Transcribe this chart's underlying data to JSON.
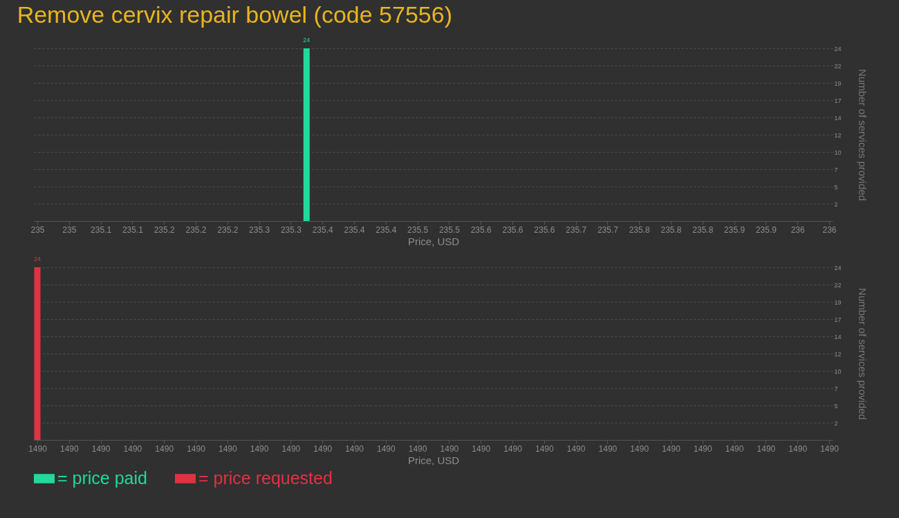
{
  "chart_data": [
    {
      "type": "bar",
      "title": "Remove cervix repair bowel (code 57556)",
      "xlabel": "Price, USD",
      "ylabel": "Number of services provided",
      "x": [
        235.34
      ],
      "series": [
        {
          "name": "= price paid",
          "color": "#22d89b",
          "values": [
            24
          ]
        }
      ],
      "xlim": [
        235,
        236
      ],
      "xticks": [
        {
          "value": 235,
          "label": "235"
        },
        {
          "value": 235.04,
          "label": "235"
        },
        {
          "value": 235.08,
          "label": "235.1"
        },
        {
          "value": 235.12,
          "label": "235.1"
        },
        {
          "value": 235.16,
          "label": "235.2"
        },
        {
          "value": 235.2,
          "label": "235.2"
        },
        {
          "value": 235.24,
          "label": "235.2"
        },
        {
          "value": 235.28,
          "label": "235.3"
        },
        {
          "value": 235.32,
          "label": "235.3"
        },
        {
          "value": 235.36,
          "label": "235.4"
        },
        {
          "value": 235.4,
          "label": "235.4"
        },
        {
          "value": 235.44,
          "label": "235.4"
        },
        {
          "value": 235.48,
          "label": "235.5"
        },
        {
          "value": 235.52,
          "label": "235.5"
        },
        {
          "value": 235.56,
          "label": "235.6"
        },
        {
          "value": 235.6,
          "label": "235.6"
        },
        {
          "value": 235.64,
          "label": "235.6"
        },
        {
          "value": 235.68,
          "label": "235.7"
        },
        {
          "value": 235.72,
          "label": "235.7"
        },
        {
          "value": 235.76,
          "label": "235.8"
        },
        {
          "value": 235.8,
          "label": "235.8"
        },
        {
          "value": 235.84,
          "label": "235.8"
        },
        {
          "value": 235.88,
          "label": "235.9"
        },
        {
          "value": 235.92,
          "label": "235.9"
        },
        {
          "value": 235.96,
          "label": "236"
        },
        {
          "value": 236,
          "label": "236"
        }
      ],
      "ylim": [
        0,
        24
      ],
      "yticks": [
        {
          "value": 2.4,
          "label": "2"
        },
        {
          "value": 4.8,
          "label": "5"
        },
        {
          "value": 7.2,
          "label": "7"
        },
        {
          "value": 9.6,
          "label": "10"
        },
        {
          "value": 12,
          "label": "12"
        },
        {
          "value": 14.4,
          "label": "14"
        },
        {
          "value": 16.8,
          "label": "17"
        },
        {
          "value": 19.2,
          "label": "19"
        },
        {
          "value": 21.6,
          "label": "22"
        },
        24
      ],
      "grid": "y",
      "data_labels": true,
      "legend": "bottom"
    },
    {
      "type": "bar",
      "xlabel": "Price, USD",
      "ylabel": "Number of services provided",
      "x": [
        1490
      ],
      "series": [
        {
          "name": "= price requested",
          "color": "#e03242",
          "values": [
            24
          ]
        }
      ],
      "xlim": [
        1490,
        1490.4
      ],
      "xticks": [
        {
          "value": 1490,
          "label": "1490"
        },
        {
          "value": 1490.016,
          "label": "1490"
        },
        {
          "value": 1490.032,
          "label": "1490"
        },
        {
          "value": 1490.048,
          "label": "1490"
        },
        {
          "value": 1490.064,
          "label": "1490"
        },
        {
          "value": 1490.08,
          "label": "1490"
        },
        {
          "value": 1490.096,
          "label": "1490"
        },
        {
          "value": 1490.112,
          "label": "1490"
        },
        {
          "value": 1490.128,
          "label": "1490"
        },
        {
          "value": 1490.144,
          "label": "1490"
        },
        {
          "value": 1490.16,
          "label": "1490"
        },
        {
          "value": 1490.176,
          "label": "1490"
        },
        {
          "value": 1490.192,
          "label": "1490"
        },
        {
          "value": 1490.208,
          "label": "1490"
        },
        {
          "value": 1490.224,
          "label": "1490"
        },
        {
          "value": 1490.24,
          "label": "1490"
        },
        {
          "value": 1490.256,
          "label": "1490"
        },
        {
          "value": 1490.272,
          "label": "1490"
        },
        {
          "value": 1490.288,
          "label": "1490"
        },
        {
          "value": 1490.304,
          "label": "1490"
        },
        {
          "value": 1490.32,
          "label": "1490"
        },
        {
          "value": 1490.336,
          "label": "1490"
        },
        {
          "value": 1490.352,
          "label": "1490"
        },
        {
          "value": 1490.368,
          "label": "1490"
        },
        {
          "value": 1490.384,
          "label": "1490"
        },
        {
          "value": 1490.4,
          "label": "1490"
        }
      ],
      "ylim": [
        0,
        24
      ],
      "yticks": [
        {
          "value": 2.4,
          "label": "2"
        },
        {
          "value": 4.8,
          "label": "5"
        },
        {
          "value": 7.2,
          "label": "7"
        },
        {
          "value": 9.6,
          "label": "10"
        },
        {
          "value": 12,
          "label": "12"
        },
        {
          "value": 14.4,
          "label": "14"
        },
        {
          "value": 16.8,
          "label": "17"
        },
        {
          "value": 19.2,
          "label": "19"
        },
        {
          "value": 21.6,
          "label": "22"
        },
        24
      ],
      "grid": "y",
      "data_labels": true,
      "legend": "bottom"
    }
  ]
}
